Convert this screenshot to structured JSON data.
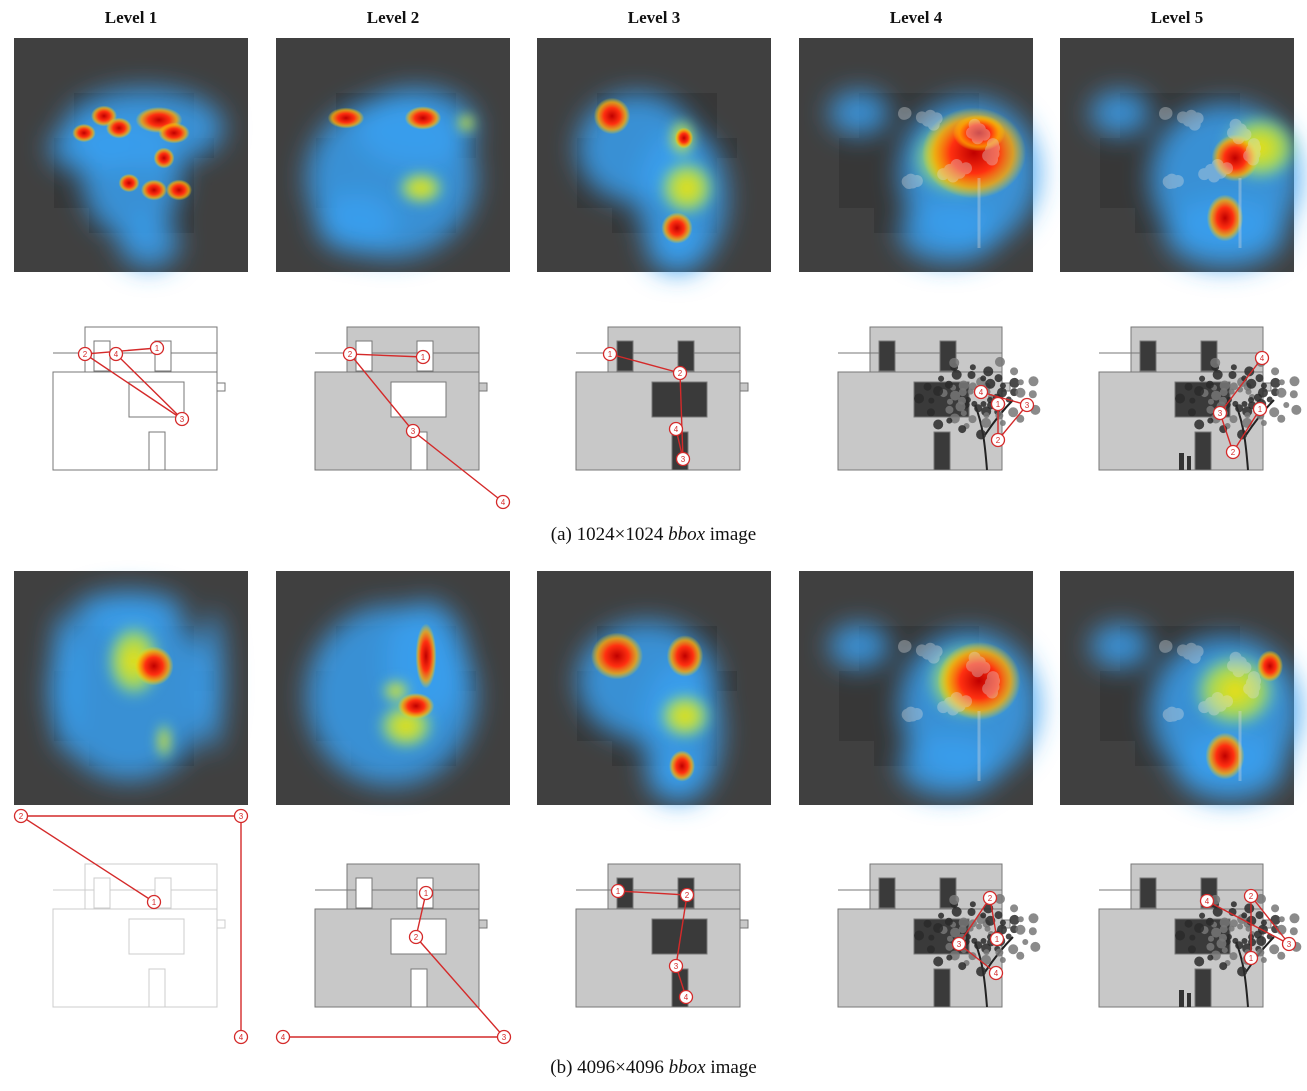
{
  "figure": {
    "levels": [
      "Level 1",
      "Level 2",
      "Level 3",
      "Level 4",
      "Level 5"
    ],
    "captions": {
      "a": {
        "prefix": "(a) 1024×1024 ",
        "em": "bbox",
        "suffix": " image"
      },
      "b": {
        "prefix": "(b) 4096×4096 ",
        "em": "bbox",
        "suffix": " image"
      }
    }
  },
  "colors": {
    "heatmap_bg": "#404040",
    "facade_line": "#777777",
    "facade_fill": "#c8c8c8",
    "window_dark": "#3a3a3a",
    "scanpath": "#d42a2a"
  },
  "scanpaths": {
    "row_a": [
      {
        "level": "Level 1",
        "fixations": [
          "1",
          "2",
          "3",
          "4"
        ]
      },
      {
        "level": "Level 2",
        "fixations": [
          "1",
          "2",
          "3",
          "4"
        ]
      },
      {
        "level": "Level 3",
        "fixations": [
          "1",
          "2",
          "3",
          "4"
        ]
      },
      {
        "level": "Level 4",
        "fixations": [
          "1",
          "2",
          "3",
          "4"
        ]
      },
      {
        "level": "Level 5",
        "fixations": [
          "1",
          "2",
          "3",
          "4"
        ]
      }
    ],
    "row_b": [
      {
        "level": "Level 1",
        "fixations": [
          "1",
          "2",
          "3",
          "4"
        ]
      },
      {
        "level": "Level 2",
        "fixations": [
          "1",
          "2",
          "3",
          "4"
        ]
      },
      {
        "level": "Level 3",
        "fixations": [
          "1",
          "2",
          "3",
          "4"
        ]
      },
      {
        "level": "Level 4",
        "fixations": [
          "1",
          "2",
          "3",
          "4"
        ]
      },
      {
        "level": "Level 5",
        "fixations": [
          "1",
          "2",
          "3",
          "4"
        ]
      }
    ]
  }
}
